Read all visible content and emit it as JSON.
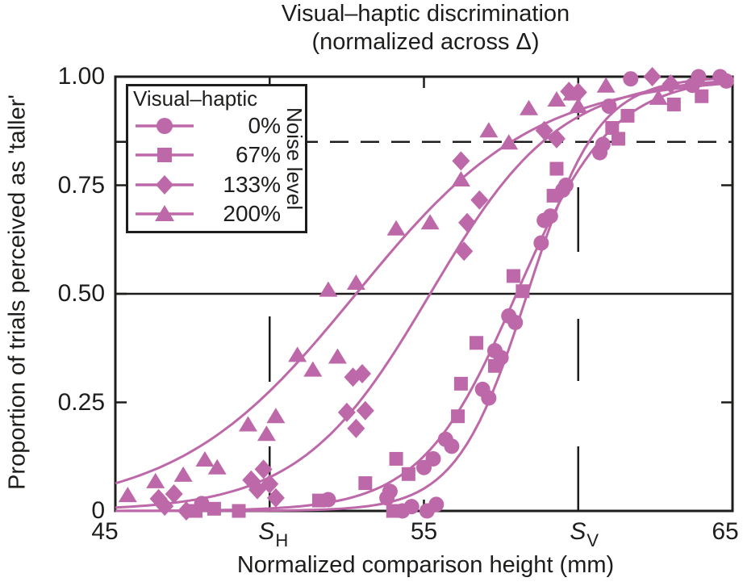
{
  "figure": {
    "title_line1": "Visual–haptic discrimination",
    "title_line2": "(normalized across Δ)"
  },
  "axes": {
    "x": {
      "label": "Normalized comparison height (mm)",
      "ticks": [
        {
          "value": 45,
          "label": "45"
        },
        {
          "value": 50,
          "base": "S",
          "sub": "H"
        },
        {
          "value": 55,
          "label": "55"
        },
        {
          "value": 60,
          "base": "S",
          "sub": "V"
        },
        {
          "value": 65,
          "label": "65"
        }
      ]
    },
    "y": {
      "label": "Proportion of trials perceived as 'taller'",
      "ticks": [
        {
          "value": 1.0,
          "label": "1.00"
        },
        {
          "value": 0.75,
          "label": "0.75"
        },
        {
          "value": 0.5,
          "label": "0.50"
        },
        {
          "value": 0.25,
          "label": "0.25"
        },
        {
          "value": 0,
          "label": "0"
        }
      ]
    }
  },
  "legend": {
    "header": "Visual–haptic",
    "side_label": "Noise level",
    "items": [
      {
        "label": "0%",
        "marker": "circle"
      },
      {
        "label": "67%",
        "marker": "square"
      },
      {
        "label": "133%",
        "marker": "diamond"
      },
      {
        "label": "200%",
        "marker": "triangle"
      }
    ]
  },
  "chart_data": {
    "type": "scatter",
    "title": "Visual–haptic discrimination (normalized across Δ)",
    "xlabel": "Normalized comparison height (mm)",
    "ylabel": "Proportion of trials perceived as 'taller'",
    "xlim": [
      45,
      65
    ],
    "ylim": [
      0,
      1
    ],
    "grid": false,
    "legend_position": "upper-left",
    "series_color": "#bd68a8",
    "frame_color": "#1d1d1b",
    "reference_lines": {
      "half_proportion": 0.5,
      "threshold_proportion": 0.85,
      "s_h_mm": 50,
      "s_v_mm": 60
    },
    "series": [
      {
        "name": "0%",
        "marker": "circle",
        "psychometric_fit": {
          "pse_mm": 58.35,
          "slope_mm": 1.15
        },
        "points": [
          [
            47.8,
            0.017
          ],
          [
            51.9,
            0.026
          ],
          [
            53.8,
            0.03
          ],
          [
            53.9,
            0.045
          ],
          [
            54.3,
            0.0
          ],
          [
            54.6,
            0.01
          ],
          [
            55.1,
            0.0
          ],
          [
            55.4,
            0.015
          ],
          [
            55.0,
            0.1
          ],
          [
            55.3,
            0.12
          ],
          [
            55.7,
            0.165
          ],
          [
            55.9,
            0.149
          ],
          [
            56.9,
            0.28
          ],
          [
            57.1,
            0.26
          ],
          [
            57.3,
            0.369
          ],
          [
            57.5,
            0.353
          ],
          [
            57.75,
            0.449
          ],
          [
            57.96,
            0.434
          ],
          [
            58.8,
            0.617
          ],
          [
            58.9,
            0.669
          ],
          [
            59.1,
            0.679
          ],
          [
            59.5,
            0.739
          ],
          [
            59.6,
            0.75
          ],
          [
            60.7,
            0.825
          ],
          [
            60.8,
            0.844
          ],
          [
            61.0,
            0.932
          ],
          [
            61.7,
            0.995
          ],
          [
            63.7,
            0.98
          ],
          [
            63.9,
            1.0
          ],
          [
            64.6,
            1.0
          ],
          [
            64.8,
            0.99
          ]
        ]
      },
      {
        "name": "67%",
        "marker": "square",
        "psychometric_fit": {
          "pse_mm": 58.0,
          "slope_mm": 1.55
        },
        "points": [
          [
            47.6,
            0.0
          ],
          [
            48.2,
            0.005
          ],
          [
            49.0,
            0.0
          ],
          [
            51.6,
            0.024
          ],
          [
            53.1,
            0.064
          ],
          [
            54.0,
            0.0
          ],
          [
            54.1,
            0.12
          ],
          [
            54.5,
            0.085
          ],
          [
            56.1,
            0.218
          ],
          [
            56.2,
            0.293
          ],
          [
            56.7,
            0.387
          ],
          [
            57.3,
            0.334
          ],
          [
            57.9,
            0.541
          ],
          [
            58.2,
            0.506
          ],
          [
            59.2,
            0.726
          ],
          [
            59.3,
            0.788
          ],
          [
            61.1,
            0.882
          ],
          [
            61.3,
            0.857
          ],
          [
            61.6,
            0.91
          ],
          [
            63.1,
            0.936
          ],
          [
            64.0,
            0.955
          ]
        ]
      },
      {
        "name": "133%",
        "marker": "diamond",
        "psychometric_fit": {
          "pse_mm": 55.2,
          "slope_mm": 2.1
        },
        "points": [
          [
            46.4,
            0.028
          ],
          [
            46.6,
            0.011
          ],
          [
            46.9,
            0.039
          ],
          [
            47.3,
            0.0
          ],
          [
            49.4,
            0.071
          ],
          [
            49.6,
            0.049
          ],
          [
            49.8,
            0.096
          ],
          [
            50.0,
            0.062
          ],
          [
            50.2,
            0.03
          ],
          [
            52.5,
            0.227
          ],
          [
            52.7,
            0.308
          ],
          [
            53.0,
            0.316
          ],
          [
            53.1,
            0.231
          ],
          [
            52.8,
            0.19
          ],
          [
            56.2,
            0.806
          ],
          [
            56.3,
            0.598
          ],
          [
            56.4,
            0.664
          ],
          [
            56.8,
            0.716
          ],
          [
            58.9,
            0.876
          ],
          [
            59.3,
            0.857
          ],
          [
            59.7,
            0.966
          ],
          [
            60.0,
            0.964
          ],
          [
            62.4,
            1.0
          ],
          [
            63.0,
            0.983
          ]
        ]
      },
      {
        "name": "200%",
        "marker": "triangle",
        "psychometric_fit": {
          "pse_mm": 52.8,
          "slope_mm": 2.9
        },
        "points": [
          [
            45.4,
            0.036
          ],
          [
            46.3,
            0.068
          ],
          [
            47.2,
            0.083
          ],
          [
            47.9,
            0.118
          ],
          [
            48.3,
            0.1
          ],
          [
            49.3,
            0.199
          ],
          [
            49.9,
            0.177
          ],
          [
            50.2,
            0.218
          ],
          [
            50.9,
            0.359
          ],
          [
            51.4,
            0.325
          ],
          [
            51.9,
            0.509
          ],
          [
            52.2,
            0.355
          ],
          [
            52.8,
            0.525
          ],
          [
            54.1,
            0.65
          ],
          [
            55.2,
            0.664
          ],
          [
            56.2,
            0.763
          ],
          [
            57.1,
            0.876
          ],
          [
            57.75,
            0.848
          ],
          [
            58.4,
            0.927
          ],
          [
            59.3,
            0.947
          ],
          [
            59.8,
            0.961
          ],
          [
            60.0,
            0.932
          ],
          [
            60.9,
            0.979
          ],
          [
            62.6,
            0.951
          ]
        ]
      }
    ]
  }
}
